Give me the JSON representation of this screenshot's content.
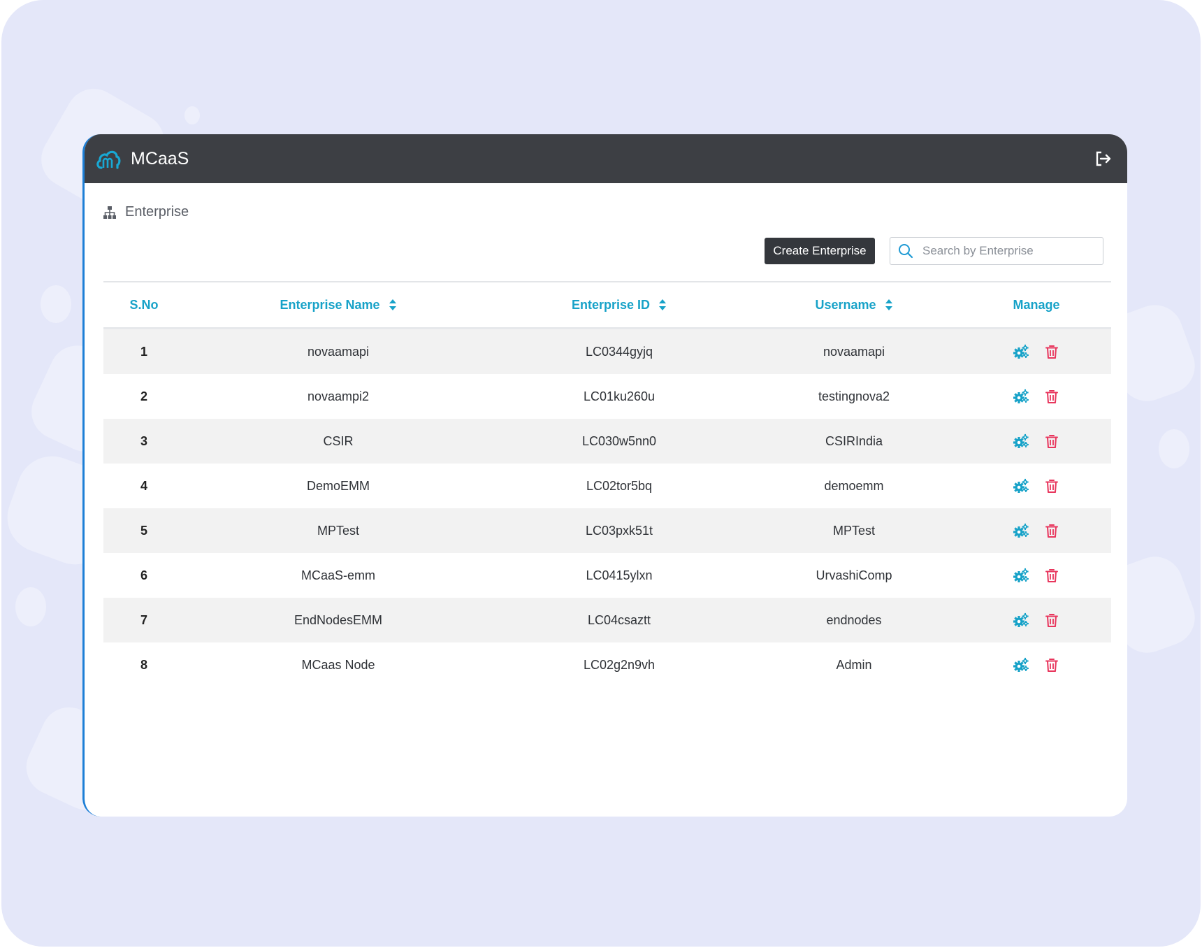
{
  "app": {
    "title": "MCaaS"
  },
  "breadcrumb": {
    "label": "Enterprise"
  },
  "toolbar": {
    "create_label": "Create Enterprise",
    "search_placeholder": "Search by Enterprise"
  },
  "table": {
    "headers": {
      "sno": "S.No",
      "name": "Enterprise Name",
      "id": "Enterprise ID",
      "username": "Username",
      "manage": "Manage"
    },
    "rows": [
      {
        "sno": "1",
        "name": "novaamapi",
        "id": "LC0344gyjq",
        "username": "novaamapi"
      },
      {
        "sno": "2",
        "name": "novaampi2",
        "id": "LC01ku260u",
        "username": "testingnova2"
      },
      {
        "sno": "3",
        "name": "CSIR",
        "id": "LC030w5nn0",
        "username": "CSIRIndia"
      },
      {
        "sno": "4",
        "name": "DemoEMM",
        "id": "LC02tor5bq",
        "username": "demoemm"
      },
      {
        "sno": "5",
        "name": "MPTest",
        "id": "LC03pxk51t",
        "username": "MPTest"
      },
      {
        "sno": "6",
        "name": "MCaaS-emm",
        "id": "LC0415ylxn",
        "username": "UrvashiComp"
      },
      {
        "sno": "7",
        "name": "EndNodesEMM",
        "id": "LC04csaztt",
        "username": "endnodes"
      },
      {
        "sno": "8",
        "name": "MCaas Node",
        "id": "LC02g2n9vh",
        "username": "Admin"
      }
    ]
  },
  "icons": {
    "logo": "cloud-logo-icon",
    "logout": "logout-icon",
    "breadcrumb": "sitemap-icon",
    "search": "search-icon",
    "sort": "sort-icon",
    "manage": "gears-icon",
    "delete": "trash-icon"
  },
  "colors": {
    "header_bar": "#3d3f44",
    "accent": "#17a2c8",
    "delete": "#e8365d",
    "background": "#e4e7f9"
  }
}
